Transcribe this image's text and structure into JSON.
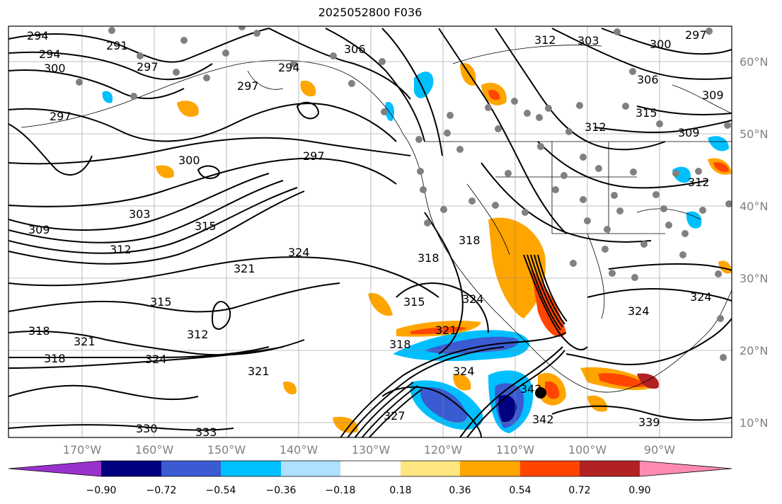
{
  "title": "2025052800 F036",
  "lat_ticks": [
    "60°N",
    "50°N",
    "40°N",
    "30°N",
    "20°N",
    "10°N"
  ],
  "lon_ticks": [
    "170°W",
    "160°W",
    "150°W",
    "140°W",
    "130°W",
    "120°W",
    "110°W",
    "100°W",
    "90°W"
  ],
  "colorbar": {
    "ticks": [
      "−0.90",
      "−0.72",
      "−0.54",
      "−0.36",
      "−0.18",
      "0.18",
      "0.36",
      "0.54",
      "0.72",
      "0.90"
    ],
    "colors": [
      "#9932cc",
      "#000080",
      "#3a5bd1",
      "#00bfff",
      "#aee0ff",
      "#ffffff",
      "#ffe680",
      "#ffa500",
      "#ff4500",
      "#b22222",
      "#ff8cb0"
    ]
  },
  "contour_labels": [
    {
      "text": "294"
    },
    {
      "text": "291"
    },
    {
      "text": "294"
    },
    {
      "text": "297"
    },
    {
      "text": "300"
    },
    {
      "text": "297"
    },
    {
      "text": "294"
    },
    {
      "text": "306"
    },
    {
      "text": "312"
    },
    {
      "text": "303"
    },
    {
      "text": "300"
    },
    {
      "text": "297"
    },
    {
      "text": "306"
    },
    {
      "text": "309"
    },
    {
      "text": "297"
    },
    {
      "text": "300"
    },
    {
      "text": "297"
    },
    {
      "text": "315"
    },
    {
      "text": "312"
    },
    {
      "text": "309"
    },
    {
      "text": "312"
    },
    {
      "text": "303"
    },
    {
      "text": "309"
    },
    {
      "text": "315"
    },
    {
      "text": "312"
    },
    {
      "text": "324"
    },
    {
      "text": "321"
    },
    {
      "text": "318"
    },
    {
      "text": "318"
    },
    {
      "text": "315"
    },
    {
      "text": "324"
    },
    {
      "text": "315"
    },
    {
      "text": "312"
    },
    {
      "text": "318"
    },
    {
      "text": "321"
    },
    {
      "text": "321"
    },
    {
      "text": "318"
    },
    {
      "text": "324"
    },
    {
      "text": "318"
    },
    {
      "text": "324"
    },
    {
      "text": "321"
    },
    {
      "text": "324"
    },
    {
      "text": "324"
    },
    {
      "text": "342"
    },
    {
      "text": "342"
    },
    {
      "text": "327"
    },
    {
      "text": "330"
    },
    {
      "text": "333"
    },
    {
      "text": "339"
    }
  ]
}
